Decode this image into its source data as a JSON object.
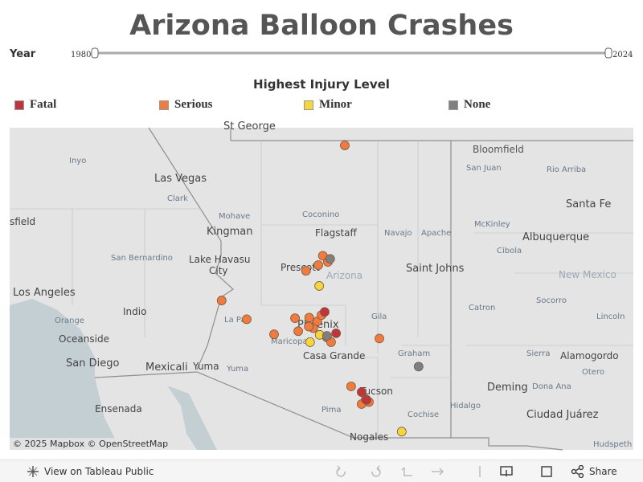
{
  "title": "Arizona Balloon Crashes",
  "year_filter": {
    "label": "Year",
    "min": 1980,
    "max": 2024
  },
  "legend": {
    "title": "Highest Injury Level",
    "items": [
      {
        "name": "Fatal",
        "color": "#c0353b"
      },
      {
        "name": "Serious",
        "color": "#f07b3f"
      },
      {
        "name": "Minor",
        "color": "#f5d63d"
      },
      {
        "name": "None",
        "color": "#7f7f7f"
      }
    ]
  },
  "map": {
    "lon_range": [
      -118.68,
      -105.0
    ],
    "lat_range": [
      31.11,
      37.3
    ]
  },
  "crashes": [
    {
      "lon": -111.33,
      "lat": 36.96,
      "level": 1
    },
    {
      "lon": -111.81,
      "lat": 34.84,
      "level": 1
    },
    {
      "lon": -111.91,
      "lat": 34.66,
      "level": 1
    },
    {
      "lon": -112.18,
      "lat": 34.55,
      "level": 1
    },
    {
      "lon": -111.7,
      "lat": 34.72,
      "level": 1
    },
    {
      "lon": -114.03,
      "lat": 33.98,
      "level": 1
    },
    {
      "lon": -113.48,
      "lat": 33.62,
      "level": 1
    },
    {
      "lon": -112.42,
      "lat": 33.64,
      "level": 1
    },
    {
      "lon": -112.88,
      "lat": 33.33,
      "level": 1
    },
    {
      "lon": -112.35,
      "lat": 33.39,
      "level": 1
    },
    {
      "lon": -112.11,
      "lat": 33.65,
      "level": 1
    },
    {
      "lon": -112.02,
      "lat": 33.45,
      "level": 1
    },
    {
      "lon": -111.93,
      "lat": 33.58,
      "level": 1
    },
    {
      "lon": -112.12,
      "lat": 33.48,
      "level": 1
    },
    {
      "lon": -111.84,
      "lat": 33.7,
      "level": 1
    },
    {
      "lon": -111.72,
      "lat": 33.27,
      "level": 1
    },
    {
      "lon": -111.63,
      "lat": 33.18,
      "level": 1
    },
    {
      "lon": -110.57,
      "lat": 33.25,
      "level": 1
    },
    {
      "lon": -111.19,
      "lat": 32.33,
      "level": 1
    },
    {
      "lon": -110.96,
      "lat": 31.99,
      "level": 1
    },
    {
      "lon": -110.87,
      "lat": 32.08,
      "level": 1
    },
    {
      "lon": -110.8,
      "lat": 32.03,
      "level": 1
    },
    {
      "lon": -111.89,
      "lat": 34.26,
      "level": 2
    },
    {
      "lon": -111.88,
      "lat": 33.32,
      "level": 2
    },
    {
      "lon": -112.09,
      "lat": 33.18,
      "level": 2
    },
    {
      "lon": -110.08,
      "lat": 31.46,
      "level": 2
    },
    {
      "lon": -111.65,
      "lat": 34.78,
      "level": 3
    },
    {
      "lon": -109.71,
      "lat": 32.71,
      "level": 3
    },
    {
      "lon": -111.72,
      "lat": 33.3,
      "level": 3
    },
    {
      "lon": -111.77,
      "lat": 33.76,
      "level": 0
    },
    {
      "lon": -111.52,
      "lat": 33.35,
      "level": 0
    },
    {
      "lon": -110.96,
      "lat": 32.22,
      "level": 0
    },
    {
      "lon": -110.85,
      "lat": 32.07,
      "level": 0
    }
  ],
  "places": [
    "St George",
    "Bloomfield",
    "Inyo",
    "San Juan",
    "Rio Arriba",
    "Las Vegas",
    "Clark",
    "Santa Fe",
    "Mohave",
    "Coconino",
    "Navajo",
    "Apache",
    "McKinley",
    "Kingman",
    "Flagstaff",
    "Albuquerque",
    "sfield",
    "San Bernardino",
    "Lake Havasu",
    "City",
    "Cibola",
    "Prescott",
    "Saint Johns",
    "Arizona",
    "New Mexico",
    "Lincoln",
    "Los Angeles",
    "Phoenix",
    "Indio",
    "Catron",
    "Socorro",
    "Orange",
    "La Paz",
    "Gila",
    "Oceanside",
    "Maricopa",
    "Casa Grande",
    "Graham",
    "Sierra",
    "Alamogordo",
    "Otero",
    "San Diego",
    "Mexicali",
    "Yuma",
    "Yuma",
    "Deming",
    "Dona Ana",
    "Ensenada",
    "Tucson",
    "Pima",
    "Cochise",
    "Hidalgo",
    "Ciudad Juárez",
    "Nogales",
    "Hudspeth"
  ],
  "attribution": "© 2025 Mapbox  © OpenStreetMap",
  "toolbar": {
    "view": "View on Tableau Public",
    "share": "Share"
  }
}
